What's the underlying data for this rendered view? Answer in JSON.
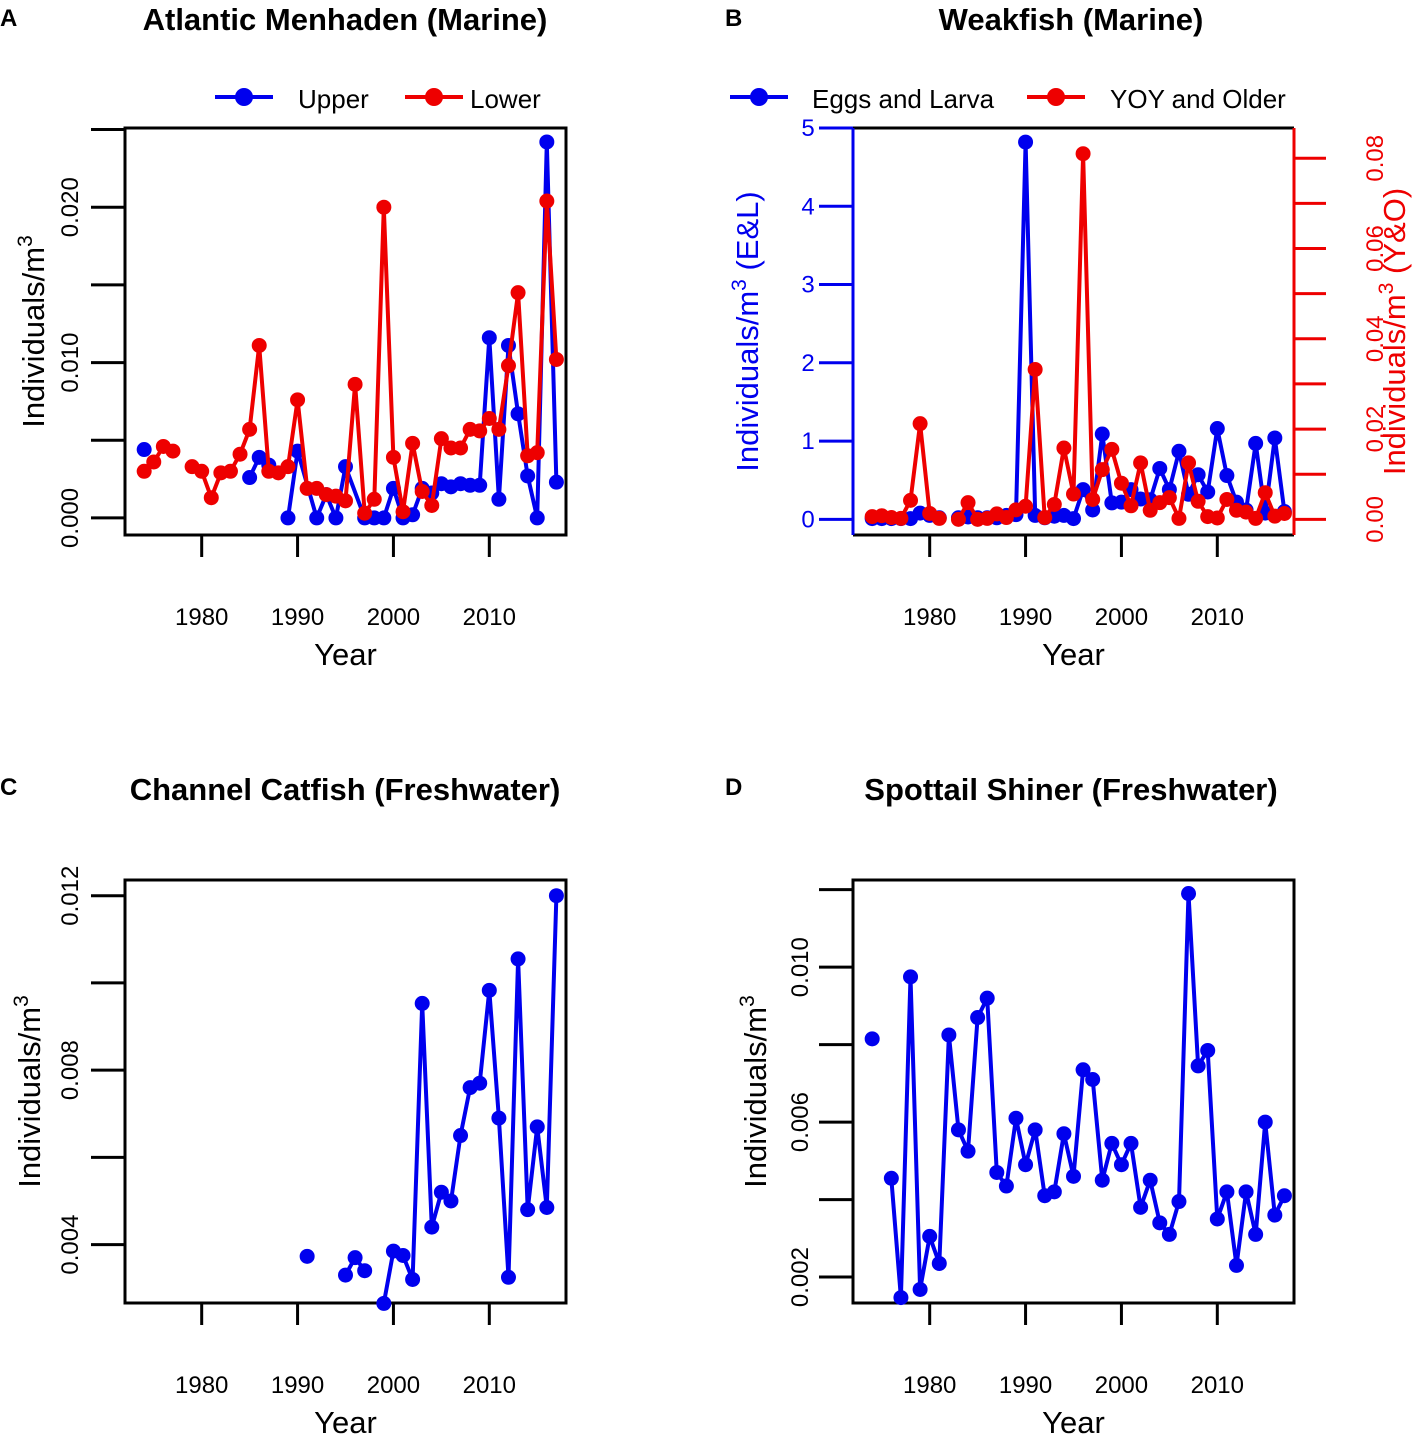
{
  "colors": {
    "blue": "#0000ee",
    "red": "#ee0000",
    "axis": "#000000"
  },
  "chart_data": [
    {
      "letter": "A",
      "title": "Atlantic Menhaden (Marine)",
      "type": "line",
      "xlabel": "Year",
      "ylabel": "Individuals/m",
      "ylabel_sup": "3",
      "xlim": [
        1972,
        2018
      ],
      "ylim": [
        -0.0011,
        0.0251
      ],
      "xticks": [
        1980,
        1990,
        2000,
        2010
      ],
      "yticks": [
        0.0,
        0.01,
        0.02
      ],
      "ytick_labels": [
        "0.000",
        "0.010",
        "0.020"
      ],
      "yminor": [
        0.005,
        0.015,
        0.025
      ],
      "legend": {
        "position": "top-right",
        "entries": [
          "Upper",
          "Lower"
        ]
      },
      "series": [
        {
          "name": "Upper",
          "color": "blue",
          "axis": "left",
          "x": [
            1974,
            1985,
            1986,
            1987,
            1989,
            1990,
            1992,
            1993,
            1994,
            1995,
            1997,
            1998,
            1999,
            2000,
            2001,
            2002,
            2003,
            2004,
            2005,
            2006,
            2007,
            2008,
            2009,
            2010,
            2011,
            2012,
            2013,
            2014,
            2015,
            2016,
            2017
          ],
          "y": [
            0.0044,
            0.0026,
            0.0039,
            0.0034,
            0.0,
            0.0043,
            0.0,
            0.0015,
            0.0,
            0.0033,
            0.0,
            0.0,
            0.0,
            0.0019,
            0.0,
            0.0002,
            0.0019,
            0.0016,
            0.0022,
            0.002,
            0.0022,
            0.0021,
            0.0021,
            0.0116,
            0.0012,
            0.0111,
            0.0067,
            0.0027,
            0.0,
            0.0242,
            0.0023
          ],
          "gaps_after": [
            1974,
            1987
          ]
        },
        {
          "name": "Lower",
          "color": "red",
          "axis": "left",
          "x": [
            1974,
            1975,
            1976,
            1977,
            1979,
            1980,
            1981,
            1982,
            1983,
            1984,
            1985,
            1986,
            1987,
            1988,
            1989,
            1990,
            1991,
            1992,
            1993,
            1994,
            1995,
            1996,
            1997,
            1998,
            1999,
            2000,
            2001,
            2002,
            2003,
            2004,
            2005,
            2006,
            2007,
            2008,
            2009,
            2010,
            2011,
            2012,
            2013,
            2014,
            2015,
            2016,
            2017
          ],
          "y": [
            0.003,
            0.0036,
            0.0046,
            0.0043,
            0.0033,
            0.003,
            0.0013,
            0.0029,
            0.003,
            0.0041,
            0.0057,
            0.0111,
            0.003,
            0.0029,
            0.0033,
            0.0076,
            0.0019,
            0.0019,
            0.0015,
            0.0014,
            0.0011,
            0.0086,
            0.0003,
            0.0012,
            0.02,
            0.0039,
            0.0004,
            0.0048,
            0.0017,
            0.0008,
            0.0051,
            0.0045,
            0.0045,
            0.0057,
            0.0056,
            0.0064,
            0.0057,
            0.0098,
            0.0145,
            0.004,
            0.0042,
            0.0204,
            0.0102
          ],
          "gaps_after": [
            1977
          ]
        }
      ]
    },
    {
      "letter": "B",
      "title": "Weakfish (Marine)",
      "type": "line",
      "xlabel": "Year",
      "ylabel": "Individuals/m",
      "ylabel_sup": "3",
      "ylabel_suffix": " (E&L)",
      "ylabel2": "Individuals/m",
      "ylabel2_sup": "3",
      "ylabel2_suffix": " (Y&O)",
      "xlim": [
        1972,
        2018
      ],
      "ylim": [
        -0.2,
        5.0
      ],
      "ylim2": [
        -0.00347,
        0.0867
      ],
      "xticks": [
        1980,
        1990,
        2000,
        2010
      ],
      "yticks": [
        0,
        1,
        2,
        3,
        4,
        5
      ],
      "ytick_labels": [
        "0",
        "1",
        "2",
        "3",
        "4",
        "5"
      ],
      "yticks2": [
        0.0,
        0.02,
        0.04,
        0.06,
        0.08
      ],
      "ytick2_labels": [
        "0.00",
        "0.02",
        "0.04",
        "0.06",
        "0.08"
      ],
      "yminor2": [
        0.01,
        0.03,
        0.05,
        0.07
      ],
      "legend": {
        "position": "top",
        "entries": [
          "Eggs and Larva",
          "YOY and Older"
        ]
      },
      "series": [
        {
          "name": "Eggs and Larva",
          "color": "blue",
          "axis": "left",
          "x": [
            1974,
            1975,
            1976,
            1977,
            1978,
            1979,
            1980,
            1981,
            1983,
            1984,
            1985,
            1986,
            1987,
            1988,
            1989,
            1990,
            1991,
            1992,
            1993,
            1994,
            1995,
            1996,
            1997,
            1998,
            1999,
            2000,
            2001,
            2002,
            2003,
            2004,
            2005,
            2006,
            2007,
            2008,
            2009,
            2010,
            2011,
            2012,
            2013,
            2014,
            2015,
            2016,
            2017
          ],
          "y": [
            0.01,
            0.01,
            0.01,
            0.01,
            0.01,
            0.08,
            0.05,
            0.02,
            0.02,
            0.03,
            0.02,
            0.02,
            0.02,
            0.05,
            0.06,
            4.82,
            0.05,
            0.02,
            0.04,
            0.05,
            0.01,
            0.38,
            0.12,
            1.09,
            0.21,
            0.22,
            0.38,
            0.26,
            0.25,
            0.65,
            0.38,
            0.87,
            0.32,
            0.57,
            0.35,
            1.16,
            0.56,
            0.22,
            0.12,
            0.97,
            0.08,
            1.04,
            0.1
          ],
          "gaps_after": [
            1981
          ]
        },
        {
          "name": "YOY and Older",
          "color": "red",
          "axis": "right",
          "x": [
            1974,
            1975,
            1976,
            1977,
            1978,
            1979,
            1980,
            1981,
            1983,
            1984,
            1985,
            1986,
            1987,
            1988,
            1989,
            1990,
            1991,
            1992,
            1993,
            1994,
            1995,
            1996,
            1997,
            1998,
            1999,
            2000,
            2001,
            2002,
            2003,
            2004,
            2005,
            2006,
            2007,
            2008,
            2009,
            2010,
            2011,
            2012,
            2013,
            2014,
            2015,
            2016,
            2017
          ],
          "y": [
            0.0006,
            0.0008,
            0.0004,
            0.0002,
            0.0042,
            0.0212,
            0.0013,
            0.0002,
            0.0,
            0.0037,
            0.0,
            0.0002,
            0.0012,
            0.0004,
            0.0021,
            0.0029,
            0.0332,
            0.0004,
            0.0033,
            0.0158,
            0.0056,
            0.081,
            0.0044,
            0.011,
            0.0155,
            0.008,
            0.003,
            0.0125,
            0.002,
            0.0037,
            0.0048,
            0.0002,
            0.0125,
            0.004,
            0.0006,
            0.0003,
            0.0044,
            0.002,
            0.0016,
            0.0002,
            0.0059,
            0.0007,
            0.0013
          ],
          "gaps_after": [
            1981
          ]
        }
      ]
    },
    {
      "letter": "C",
      "title": "Channel Catfish (Freshwater)",
      "type": "line",
      "xlabel": "Year",
      "ylabel": "Individuals/m",
      "ylabel_sup": "3",
      "xlim": [
        1972,
        2018
      ],
      "ylim": [
        0.00266,
        0.01236
      ],
      "xticks": [
        1980,
        1990,
        2000,
        2010
      ],
      "yticks": [
        0.004,
        0.008,
        0.012
      ],
      "ytick_labels": [
        "0.004",
        "0.008",
        "0.012"
      ],
      "yminor": [
        0.006,
        0.01
      ],
      "series": [
        {
          "name": "",
          "color": "blue",
          "axis": "left",
          "x": [
            1991,
            1995,
            1996,
            1997,
            1999,
            2000,
            2001,
            2002,
            2003,
            2004,
            2005,
            2006,
            2007,
            2008,
            2009,
            2010,
            2011,
            2012,
            2013,
            2014,
            2015,
            2016,
            2017
          ],
          "y": [
            0.00373,
            0.0033,
            0.0037,
            0.0034,
            0.00265,
            0.00385,
            0.00375,
            0.0032,
            0.00953,
            0.0044,
            0.0052,
            0.005,
            0.0065,
            0.0076,
            0.0077,
            0.00983,
            0.0069,
            0.00325,
            0.01055,
            0.0048,
            0.0067,
            0.00485,
            0.012
          ],
          "gaps_after": [
            1991,
            1997
          ]
        }
      ]
    },
    {
      "letter": "D",
      "title": "Spottail Shiner (Freshwater)",
      "type": "line",
      "xlabel": "Year",
      "ylabel": "Individuals/m",
      "ylabel_sup": "3",
      "xlim": [
        1972,
        2018
      ],
      "ylim": [
        0.00133,
        0.01225
      ],
      "xticks": [
        1980,
        1990,
        2000,
        2010
      ],
      "yticks": [
        0.002,
        0.006,
        0.01
      ],
      "ytick_labels": [
        "0.002",
        "0.006",
        "0.010"
      ],
      "yminor": [
        0.004,
        0.008,
        0.012
      ],
      "series": [
        {
          "name": "",
          "color": "blue",
          "axis": "left",
          "x": [
            1974,
            1976,
            1977,
            1978,
            1979,
            1980,
            1981,
            1982,
            1983,
            1984,
            1985,
            1986,
            1987,
            1988,
            1989,
            1990,
            1991,
            1992,
            1993,
            1994,
            1995,
            1996,
            1997,
            1998,
            1999,
            2000,
            2001,
            2002,
            2003,
            2004,
            2005,
            2006,
            2007,
            2008,
            2009,
            2010,
            2011,
            2012,
            2013,
            2014,
            2015,
            2016,
            2017
          ],
          "y": [
            0.00815,
            0.00455,
            0.00147,
            0.00975,
            0.00168,
            0.00305,
            0.00235,
            0.00825,
            0.0058,
            0.00525,
            0.0087,
            0.0092,
            0.0047,
            0.00435,
            0.0061,
            0.0049,
            0.0058,
            0.0041,
            0.0042,
            0.0057,
            0.0046,
            0.00735,
            0.0071,
            0.0045,
            0.00545,
            0.0049,
            0.00545,
            0.0038,
            0.0045,
            0.0034,
            0.0031,
            0.00395,
            0.0119,
            0.00745,
            0.00785,
            0.0035,
            0.0042,
            0.0023,
            0.0042,
            0.0031,
            0.006,
            0.0036,
            0.0041
          ],
          "gaps_after": [
            1974
          ]
        }
      ]
    }
  ]
}
